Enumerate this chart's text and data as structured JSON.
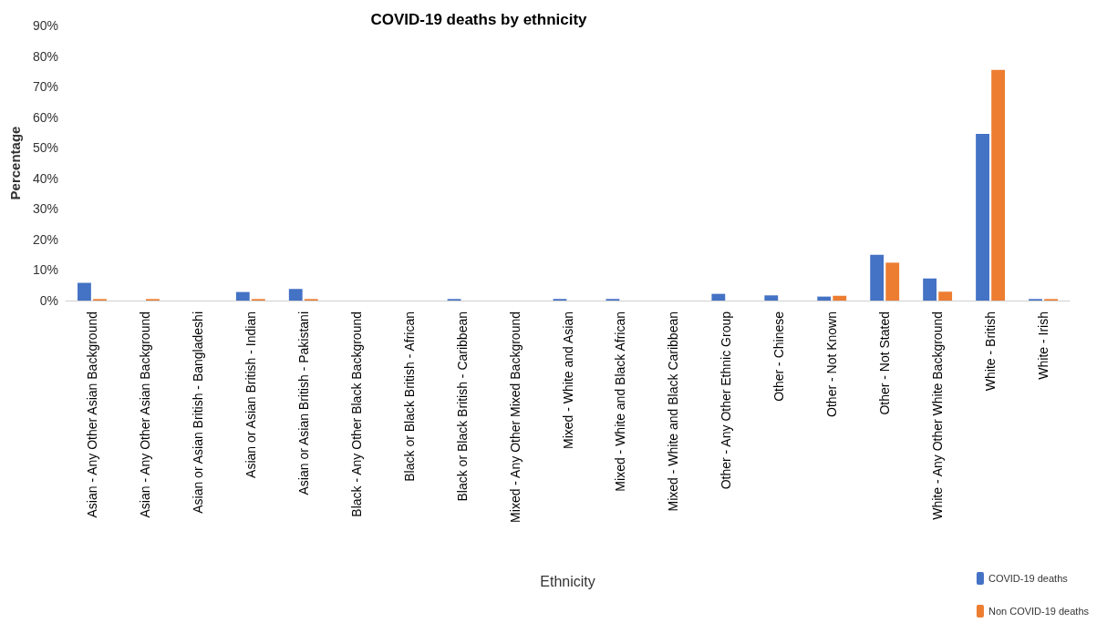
{
  "chart_data": {
    "type": "bar",
    "title": "COVID-19 deaths by ethnicity",
    "xlabel": "Ethnicity",
    "ylabel": "Percentage",
    "categories": [
      "Asian - Any Other Asian Background",
      "Asian - Any Other Asian Background",
      "Asian or Asian British - Bangladeshi",
      "Asian or Asian British - Indian",
      "Asian or Asian British - Pakistani",
      "Black - Any Other Black Background",
      "Black or Black British - African",
      "Black or Black British - Caribbean",
      "Mixed - Any Other Mixed Background",
      "Mixed - White and Asian",
      "Mixed - White and Black African",
      "Mixed - White and Black Caribbean",
      "Other - Any Other Ethnic Group",
      "Other - Chinese",
      "Other - Not Known",
      "Other - Not Stated",
      "White - Any Other White Background",
      "White - British",
      "White - Irish"
    ],
    "series": [
      {
        "name": "COVID-19 deaths",
        "color": "#4472c4",
        "values": [
          5.8,
          0,
          0,
          2.8,
          3.8,
          0,
          0,
          0.5,
          0,
          0.5,
          0.5,
          0,
          2.2,
          1.7,
          1.3,
          15,
          7.2,
          54.5,
          0.5
        ]
      },
      {
        "name": "Non COVID-19 deaths",
        "color": "#ed7d31",
        "values": [
          0.5,
          0.5,
          0,
          0.5,
          0.5,
          0,
          0,
          0,
          0,
          0,
          0,
          0,
          0,
          0,
          1.6,
          12.4,
          2.9,
          75.5,
          0.5
        ]
      }
    ],
    "ylim": [
      0,
      90
    ],
    "yticks": [
      {
        "value": 0,
        "label": "0%"
      },
      {
        "value": 10,
        "label": "10%"
      },
      {
        "value": 20,
        "label": "20%"
      },
      {
        "value": 30,
        "label": "30%"
      },
      {
        "value": 40,
        "label": "40%"
      },
      {
        "value": 50,
        "label": "50%"
      },
      {
        "value": 60,
        "label": "60%"
      },
      {
        "value": 70,
        "label": "70%"
      },
      {
        "value": 80,
        "label": "80%"
      },
      {
        "value": 90,
        "label": "90%"
      }
    ],
    "legend": "bottom right",
    "grid": false
  }
}
